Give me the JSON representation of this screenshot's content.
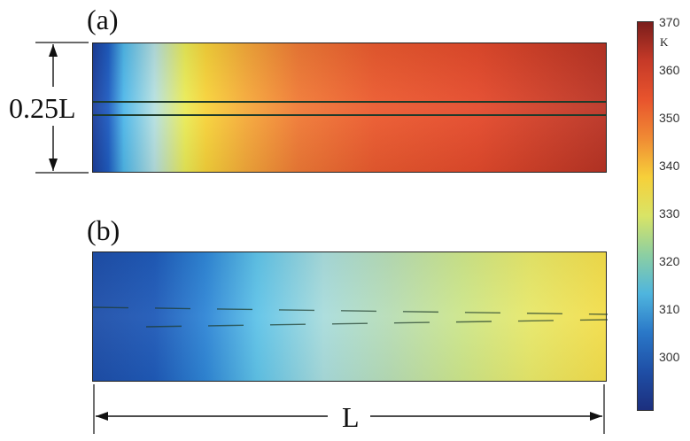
{
  "panels": {
    "a": {
      "label": "(a)"
    },
    "b": {
      "label": "(b)"
    }
  },
  "dimensions": {
    "height_label": "0.25L",
    "length_label": "L"
  },
  "colorbar": {
    "unit": "K",
    "ticks": [
      "370",
      "360",
      "350",
      "340",
      "330",
      "320",
      "310",
      "300"
    ],
    "colors": [
      "#7a1d1b",
      "#c63a28",
      "#e8542d",
      "#f08b34",
      "#f6d03a",
      "#d9e466",
      "#8ccfa2",
      "#4fb5de",
      "#2a78c8",
      "#1f4fa6",
      "#1c2f7e"
    ]
  }
}
